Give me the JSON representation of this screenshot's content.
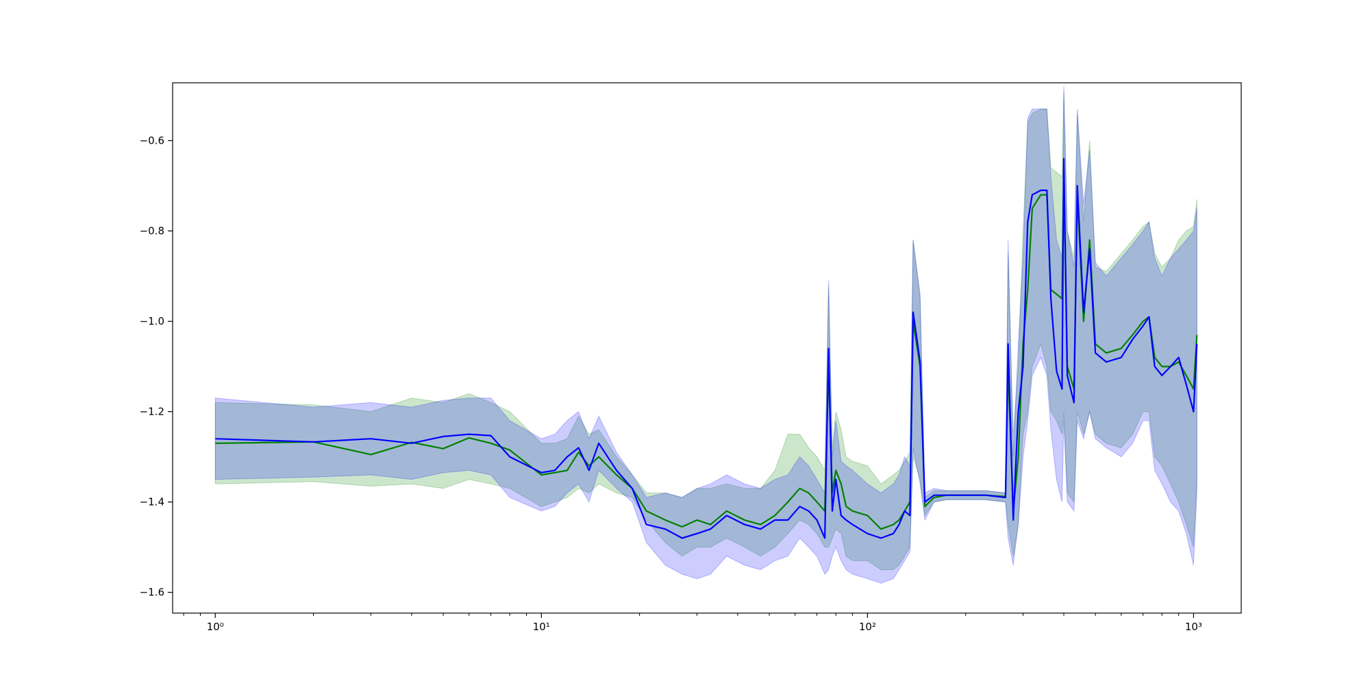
{
  "chart_data": {
    "type": "line",
    "title": "",
    "xlabel": "",
    "ylabel": "",
    "xscale": "log",
    "xlim": [
      0.74,
      1400
    ],
    "ylim": [
      -1.646,
      -0.472
    ],
    "grid": false,
    "legend": "none",
    "x_ticks": [
      {
        "value": 1,
        "label": "10⁰"
      },
      {
        "value": 10,
        "label": "10¹"
      },
      {
        "value": 100,
        "label": "10²"
      },
      {
        "value": 1000,
        "label": "10³"
      }
    ],
    "y_ticks": [
      {
        "value": -0.6,
        "label": "−0.6"
      },
      {
        "value": -0.8,
        "label": "−0.8"
      },
      {
        "value": -1.0,
        "label": "−1.0"
      },
      {
        "value": -1.2,
        "label": "−1.2"
      },
      {
        "value": -1.4,
        "label": "−1.4"
      },
      {
        "value": -1.6,
        "label": "−1.6"
      }
    ],
    "series": [
      {
        "color": "#008000",
        "band_color": "#008000",
        "x": [
          1,
          2,
          3,
          4,
          5,
          6,
          7,
          8,
          10,
          11,
          12,
          13,
          14,
          15,
          17,
          19,
          21,
          24,
          27,
          30,
          33,
          37,
          42,
          47,
          52,
          57,
          62,
          66,
          70,
          74,
          76,
          78,
          80,
          83,
          86,
          90,
          100,
          110,
          120,
          125,
          130,
          135,
          138,
          145,
          150,
          160,
          175,
          200,
          230,
          265,
          270,
          280,
          290,
          300,
          310,
          320,
          340,
          355,
          365,
          380,
          395,
          400,
          410,
          430,
          440,
          460,
          480,
          500,
          540,
          600,
          650,
          700,
          730,
          760,
          800,
          850,
          900,
          950,
          1000,
          1024
        ],
        "values": [
          -1.27,
          -1.267,
          -1.295,
          -1.268,
          -1.282,
          -1.258,
          -1.27,
          -1.285,
          -1.34,
          -1.335,
          -1.33,
          -1.29,
          -1.32,
          -1.3,
          -1.34,
          -1.37,
          -1.42,
          -1.44,
          -1.455,
          -1.44,
          -1.45,
          -1.42,
          -1.44,
          -1.45,
          -1.43,
          -1.4,
          -1.37,
          -1.38,
          -1.4,
          -1.42,
          -1.1,
          -1.38,
          -1.33,
          -1.36,
          -1.41,
          -1.42,
          -1.43,
          -1.46,
          -1.45,
          -1.44,
          -1.42,
          -1.4,
          -1.0,
          -1.1,
          -1.41,
          -1.39,
          -1.385,
          -1.385,
          -1.385,
          -1.388,
          -1.1,
          -1.42,
          -1.3,
          -1.05,
          -0.93,
          -0.75,
          -0.72,
          -0.72,
          -0.93,
          -0.94,
          -0.95,
          -0.66,
          -1.1,
          -1.15,
          -0.72,
          -1.0,
          -0.82,
          -1.05,
          -1.07,
          -1.06,
          -1.03,
          -1.0,
          -0.99,
          -1.08,
          -1.1,
          -1.1,
          -1.09,
          -1.12,
          -1.15,
          -1.03
        ],
        "lower": [
          -1.36,
          -1.355,
          -1.365,
          -1.36,
          -1.37,
          -1.35,
          -1.36,
          -1.37,
          -1.41,
          -1.4,
          -1.39,
          -1.37,
          -1.38,
          -1.36,
          -1.38,
          -1.39,
          -1.44,
          -1.49,
          -1.52,
          -1.5,
          -1.5,
          -1.48,
          -1.5,
          -1.52,
          -1.5,
          -1.47,
          -1.44,
          -1.45,
          -1.47,
          -1.5,
          -1.5,
          -1.48,
          -1.46,
          -1.47,
          -1.52,
          -1.53,
          -1.53,
          -1.55,
          -1.55,
          -1.54,
          -1.52,
          -1.5,
          -1.3,
          -1.35,
          -1.43,
          -1.4,
          -1.395,
          -1.395,
          -1.395,
          -1.4,
          -1.45,
          -1.52,
          -1.45,
          -1.25,
          -1.2,
          -1.1,
          -1.05,
          -1.1,
          -1.2,
          -1.22,
          -1.25,
          -1.2,
          -1.38,
          -1.4,
          -1.2,
          -1.25,
          -1.2,
          -1.25,
          -1.27,
          -1.28,
          -1.25,
          -1.2,
          -1.2,
          -1.3,
          -1.32,
          -1.36,
          -1.4,
          -1.45,
          -1.5,
          -1.35
        ],
        "upper": [
          -1.18,
          -1.185,
          -1.2,
          -1.17,
          -1.18,
          -1.16,
          -1.18,
          -1.2,
          -1.27,
          -1.27,
          -1.26,
          -1.21,
          -1.25,
          -1.24,
          -1.3,
          -1.34,
          -1.38,
          -1.38,
          -1.39,
          -1.37,
          -1.37,
          -1.36,
          -1.37,
          -1.37,
          -1.33,
          -1.25,
          -1.25,
          -1.28,
          -1.3,
          -1.33,
          -0.92,
          -1.28,
          -1.2,
          -1.24,
          -1.3,
          -1.31,
          -1.32,
          -1.36,
          -1.34,
          -1.33,
          -1.31,
          -1.29,
          -0.82,
          -0.95,
          -1.39,
          -1.375,
          -1.375,
          -1.375,
          -1.375,
          -1.38,
          -0.85,
          -1.25,
          -1.1,
          -0.8,
          -0.56,
          -0.54,
          -0.53,
          -0.53,
          -0.66,
          -0.67,
          -0.68,
          -0.49,
          -0.8,
          -0.86,
          -0.54,
          -0.78,
          -0.6,
          -0.88,
          -0.89,
          -0.85,
          -0.82,
          -0.79,
          -0.78,
          -0.85,
          -0.88,
          -0.86,
          -0.82,
          -0.8,
          -0.79,
          -0.73
        ]
      },
      {
        "color": "#0000ff",
        "band_color": "#0000ff",
        "x": [
          1,
          2,
          3,
          4,
          5,
          6,
          7,
          8,
          10,
          11,
          12,
          13,
          14,
          15,
          17,
          19,
          21,
          24,
          27,
          30,
          33,
          37,
          42,
          47,
          52,
          57,
          62,
          66,
          70,
          74,
          76,
          78,
          80,
          83,
          86,
          90,
          100,
          110,
          120,
          125,
          130,
          135,
          138,
          145,
          150,
          160,
          175,
          200,
          230,
          265,
          270,
          280,
          290,
          300,
          310,
          320,
          340,
          355,
          365,
          380,
          395,
          400,
          410,
          430,
          440,
          460,
          480,
          500,
          540,
          600,
          650,
          700,
          730,
          760,
          800,
          850,
          900,
          950,
          1000,
          1024
        ],
        "values": [
          -1.26,
          -1.267,
          -1.26,
          -1.27,
          -1.255,
          -1.25,
          -1.253,
          -1.3,
          -1.335,
          -1.33,
          -1.3,
          -1.28,
          -1.33,
          -1.27,
          -1.33,
          -1.37,
          -1.45,
          -1.46,
          -1.48,
          -1.47,
          -1.46,
          -1.43,
          -1.45,
          -1.46,
          -1.44,
          -1.44,
          -1.41,
          -1.42,
          -1.44,
          -1.48,
          -1.06,
          -1.42,
          -1.35,
          -1.43,
          -1.44,
          -1.45,
          -1.47,
          -1.48,
          -1.47,
          -1.45,
          -1.42,
          -1.43,
          -0.98,
          -1.09,
          -1.4,
          -1.385,
          -1.385,
          -1.385,
          -1.385,
          -1.39,
          -1.05,
          -1.44,
          -1.2,
          -1.1,
          -0.78,
          -0.72,
          -0.71,
          -0.71,
          -0.95,
          -1.11,
          -1.15,
          -0.64,
          -1.12,
          -1.18,
          -0.7,
          -0.98,
          -0.84,
          -1.07,
          -1.09,
          -1.08,
          -1.04,
          -1.01,
          -0.99,
          -1.1,
          -1.12,
          -1.1,
          -1.08,
          -1.14,
          -1.2,
          -1.05
        ],
        "lower": [
          -1.35,
          -1.345,
          -1.34,
          -1.35,
          -1.335,
          -1.33,
          -1.34,
          -1.39,
          -1.42,
          -1.41,
          -1.38,
          -1.36,
          -1.4,
          -1.33,
          -1.37,
          -1.4,
          -1.49,
          -1.54,
          -1.56,
          -1.57,
          -1.56,
          -1.52,
          -1.54,
          -1.55,
          -1.53,
          -1.52,
          -1.48,
          -1.5,
          -1.52,
          -1.56,
          -1.55,
          -1.52,
          -1.5,
          -1.53,
          -1.55,
          -1.56,
          -1.57,
          -1.58,
          -1.57,
          -1.55,
          -1.53,
          -1.51,
          -1.28,
          -1.36,
          -1.44,
          -1.4,
          -1.395,
          -1.395,
          -1.395,
          -1.4,
          -1.48,
          -1.54,
          -1.45,
          -1.3,
          -1.22,
          -1.12,
          -1.08,
          -1.12,
          -1.24,
          -1.35,
          -1.4,
          -1.22,
          -1.4,
          -1.42,
          -1.22,
          -1.26,
          -1.2,
          -1.26,
          -1.28,
          -1.3,
          -1.27,
          -1.22,
          -1.22,
          -1.33,
          -1.36,
          -1.4,
          -1.42,
          -1.47,
          -1.54,
          -1.38
        ],
        "upper": [
          -1.17,
          -1.19,
          -1.18,
          -1.19,
          -1.175,
          -1.17,
          -1.17,
          -1.22,
          -1.26,
          -1.25,
          -1.22,
          -1.2,
          -1.26,
          -1.21,
          -1.29,
          -1.34,
          -1.39,
          -1.38,
          -1.39,
          -1.37,
          -1.36,
          -1.34,
          -1.36,
          -1.37,
          -1.35,
          -1.34,
          -1.3,
          -1.32,
          -1.35,
          -1.38,
          -0.91,
          -1.3,
          -1.22,
          -1.31,
          -1.32,
          -1.33,
          -1.36,
          -1.38,
          -1.36,
          -1.34,
          -1.3,
          -1.32,
          -0.82,
          -0.94,
          -1.38,
          -1.37,
          -1.375,
          -1.375,
          -1.375,
          -1.38,
          -0.82,
          -1.3,
          -1.05,
          -0.86,
          -0.55,
          -0.53,
          -0.53,
          -0.53,
          -0.68,
          -0.82,
          -0.86,
          -0.48,
          -0.8,
          -0.88,
          -0.53,
          -0.74,
          -0.62,
          -0.87,
          -0.9,
          -0.86,
          -0.83,
          -0.8,
          -0.78,
          -0.86,
          -0.9,
          -0.86,
          -0.84,
          -0.82,
          -0.8,
          -0.75
        ]
      }
    ]
  }
}
